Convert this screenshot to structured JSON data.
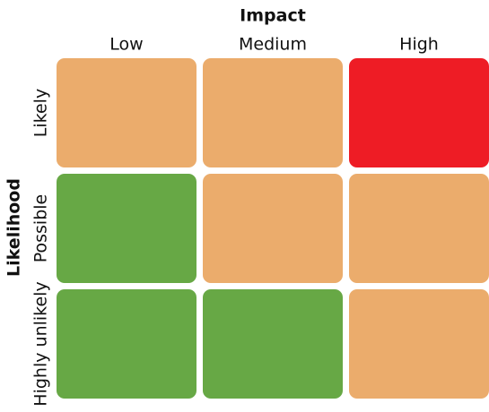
{
  "x_axis": {
    "title": "Impact",
    "labels": [
      "Low",
      "Medium",
      "High"
    ]
  },
  "y_axis": {
    "title": "Likelihood",
    "labels": [
      "Likely",
      "Possible",
      "Highly unlikely"
    ]
  },
  "cells": [
    [
      "#ebac6c",
      "#ebac6c",
      "#ee1c25"
    ],
    [
      "#67a845",
      "#ebac6c",
      "#ebac6c"
    ],
    [
      "#67a845",
      "#67a845",
      "#ebac6c"
    ]
  ]
}
